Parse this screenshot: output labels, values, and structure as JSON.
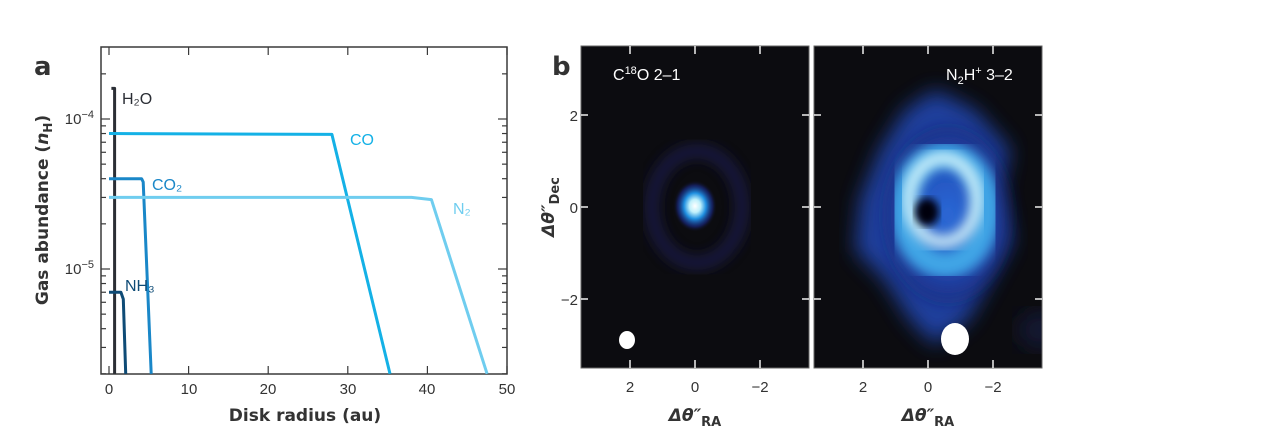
{
  "chart_data": [
    {
      "panel": "a",
      "type": "line",
      "xlabel": "Disk radius (au)",
      "ylabel": {
        "text": "Gas abundance (",
        "var": "n",
        "sub": "H",
        "close": ")"
      },
      "xlim": [
        0,
        50
      ],
      "ylim": [
        2e-06,
        0.0003
      ],
      "yscale": "log",
      "xticks": [
        "0",
        "10",
        "20",
        "30",
        "40",
        "50"
      ],
      "yticks": [
        {
          "base": "10",
          "exp": "−4",
          "value": 0.0001
        },
        {
          "base": "10",
          "exp": "−5",
          "value": 1e-05
        }
      ],
      "grid": false,
      "series": [
        {
          "name": "H₂O",
          "color": "#2b2e35",
          "x": [
            0.3,
            0.7,
            0.7
          ],
          "y": [
            0.00016,
            0.00016,
            2e-06
          ]
        },
        {
          "name": "CO",
          "color": "#14b1e6",
          "x": [
            0,
            28,
            35.3
          ],
          "y": [
            8e-05,
            7.9e-05,
            2e-06
          ]
        },
        {
          "name": "CO₂",
          "color": "#1a87c8",
          "x": [
            0,
            4.1,
            4.3,
            5.3
          ],
          "y": [
            4e-05,
            4e-05,
            3.8e-05,
            2e-06
          ]
        },
        {
          "name": "N₂",
          "color": "#6fcdef",
          "x": [
            0,
            38,
            40.5,
            47.5
          ],
          "y": [
            3e-05,
            3e-05,
            2.9e-05,
            2e-06
          ]
        },
        {
          "name": "NH₃",
          "color": "#0e4b76",
          "x": [
            0,
            1.5,
            1.8,
            2.1
          ],
          "y": [
            7e-06,
            7e-06,
            6.3e-06,
            2e-06
          ]
        }
      ]
    },
    {
      "panel": "b",
      "type": "heatmap",
      "title": {
        "pre": "C",
        "sup": "18",
        "post": "O 2–1"
      },
      "xticks": [
        "2",
        "0",
        "−2"
      ],
      "yticks": [
        "2",
        "0",
        "−2"
      ],
      "xlabel": {
        "main": "Δθ″",
        "sub": "RA"
      },
      "ylabel": {
        "main": "Δθ″",
        "sub": "Dec"
      },
      "colormap": [
        "#0c0c10",
        "#1c2a8a",
        "#1878d0",
        "#7fe0f0",
        "#ffffff"
      ],
      "structure": "compact central peak with faint ring"
    },
    {
      "panel": "b",
      "type": "heatmap",
      "title": {
        "pre": "N",
        "sub": "2",
        "mid": "H",
        "sup": "+",
        "post": " 3–2"
      },
      "xticks": [
        "2",
        "0",
        "−2"
      ],
      "xlabel": {
        "main": "Δθ″",
        "sub": "RA"
      },
      "colormap": [
        "#0c0c10",
        "#1c2a8a",
        "#1878d0",
        "#7fe0f0",
        "#ffffff"
      ],
      "structure": "ring with central hole and extended envelope"
    }
  ],
  "panel_labels": [
    "a",
    "b"
  ]
}
